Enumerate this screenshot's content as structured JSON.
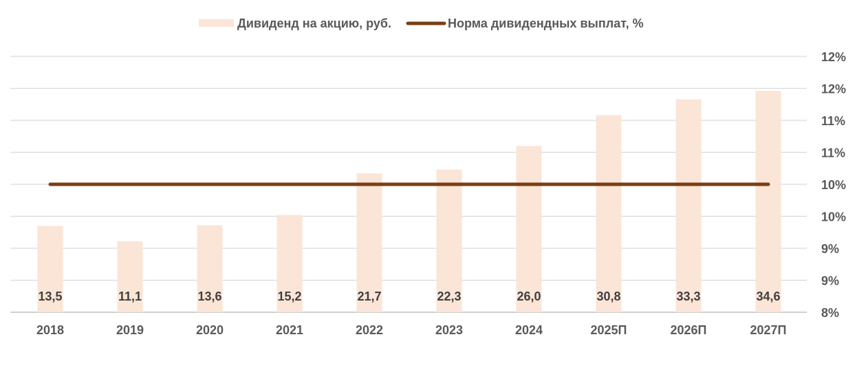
{
  "chart_data": {
    "type": "bar",
    "title": "",
    "categories": [
      "2018",
      "2019",
      "2020",
      "2021",
      "2022",
      "2023",
      "2024",
      "2025П",
      "2026П",
      "2027П"
    ],
    "series": [
      {
        "name": "Дивиденд на акцию, руб.",
        "type": "bar",
        "axis": "left",
        "values": [
          13.5,
          11.1,
          13.6,
          15.2,
          21.7,
          22.3,
          26.0,
          30.8,
          33.3,
          34.6
        ],
        "data_labels": [
          "13,5",
          "11,1",
          "13,6",
          "15,2",
          "21,7",
          "22,3",
          "26,0",
          "30,8",
          "33,3",
          "34,6"
        ],
        "color": "#fbe5d6"
      },
      {
        "name": "Норма дивидендных выплат, %",
        "type": "line",
        "axis": "right",
        "values": [
          10,
          10,
          10,
          10,
          10,
          10,
          10,
          10,
          10,
          10
        ],
        "color": "#7b3f14"
      }
    ],
    "left_axis": {
      "range": [
        0,
        40
      ],
      "visible": false
    },
    "right_axis": {
      "range": [
        8,
        12
      ],
      "tick_labels": [
        "8%",
        "9%",
        "9%",
        "10%",
        "10%",
        "11%",
        "11%",
        "12%",
        "12%"
      ]
    },
    "legend_position": "top",
    "grid": true,
    "gridline_color": "#d9d9d9",
    "axis_color": "#bfbfbf",
    "text_color": "#595959"
  }
}
